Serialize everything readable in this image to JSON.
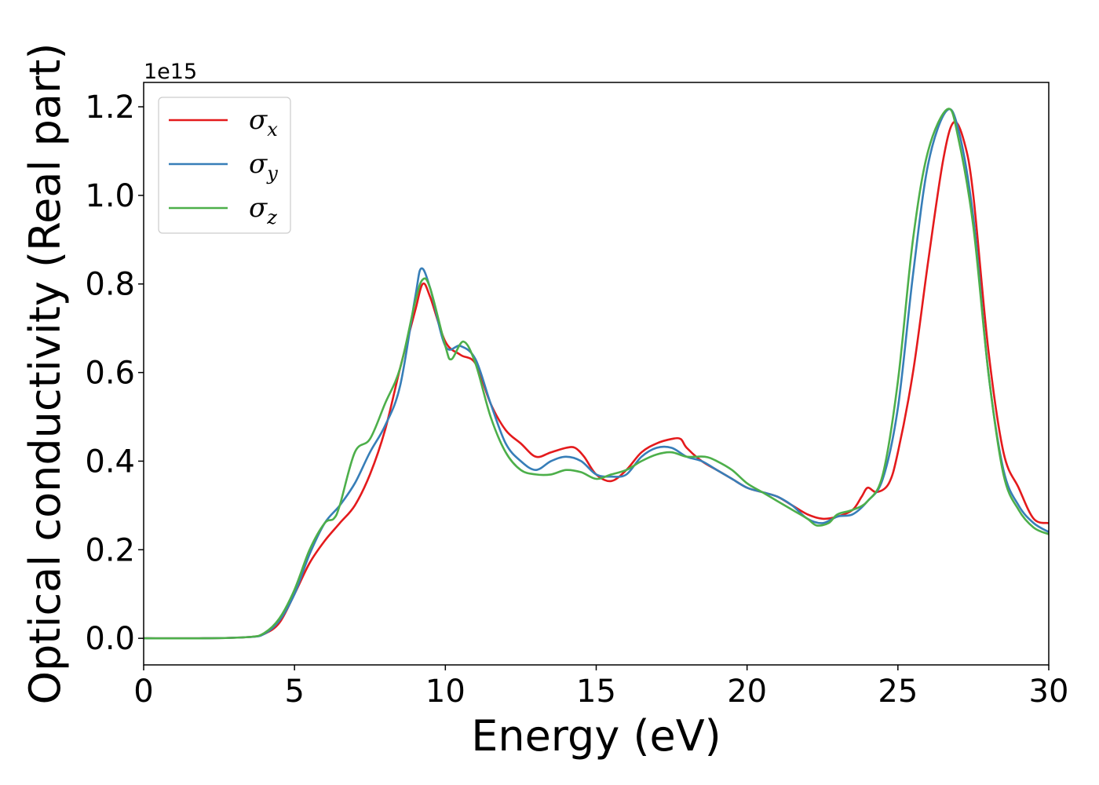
{
  "chart_data": {
    "type": "line",
    "title": "",
    "xlabel": "Energy (eV)",
    "ylabel": "Optical conductivity (Real part)",
    "y_offset_label": "1e15",
    "xlim": [
      0,
      30
    ],
    "ylim": [
      -0.06,
      1.255
    ],
    "x_ticks": [
      0,
      5,
      10,
      15,
      20,
      25,
      30
    ],
    "x_tick_labels": [
      "0",
      "5",
      "10",
      "15",
      "20",
      "25",
      "30"
    ],
    "y_ticks": [
      0.0,
      0.2,
      0.4,
      0.6,
      0.8,
      1.0,
      1.2
    ],
    "y_tick_labels": [
      "0.0",
      "0.2",
      "0.4",
      "0.6",
      "0.8",
      "1.0",
      "1.2"
    ],
    "grid": false,
    "legend_position": "top-left",
    "series": [
      {
        "name": "σx",
        "legend_symbol": "σ",
        "legend_subscript": "x",
        "color": "#e41a1c",
        "x": [
          0,
          2,
          3.5,
          4.0,
          4.5,
          5.0,
          5.5,
          6.0,
          6.5,
          7.0,
          7.5,
          8.0,
          8.5,
          9.0,
          9.25,
          9.5,
          10.0,
          10.5,
          11.0,
          11.5,
          12.0,
          12.5,
          13.0,
          13.5,
          14.0,
          14.3,
          14.6,
          15.0,
          15.5,
          16.0,
          16.5,
          17.0,
          17.5,
          17.8,
          18.0,
          18.5,
          19.0,
          19.5,
          20.0,
          20.5,
          21.0,
          21.5,
          22.0,
          22.5,
          23.0,
          23.5,
          23.8,
          24.0,
          24.3,
          24.7,
          25.0,
          25.5,
          26.0,
          26.5,
          26.85,
          27.2,
          27.5,
          28.0,
          28.5,
          29.0,
          29.5,
          30.0
        ],
        "y": [
          0.0,
          0.0,
          0.003,
          0.01,
          0.035,
          0.1,
          0.17,
          0.22,
          0.26,
          0.3,
          0.37,
          0.47,
          0.61,
          0.74,
          0.8,
          0.77,
          0.67,
          0.64,
          0.62,
          0.53,
          0.47,
          0.44,
          0.41,
          0.42,
          0.43,
          0.43,
          0.41,
          0.37,
          0.355,
          0.38,
          0.42,
          0.44,
          0.45,
          0.45,
          0.43,
          0.4,
          0.38,
          0.36,
          0.34,
          0.33,
          0.32,
          0.3,
          0.28,
          0.27,
          0.275,
          0.29,
          0.32,
          0.34,
          0.33,
          0.35,
          0.42,
          0.6,
          0.85,
          1.08,
          1.165,
          1.12,
          1.0,
          0.65,
          0.42,
          0.34,
          0.27,
          0.26
        ]
      },
      {
        "name": "σy",
        "legend_symbol": "σ",
        "legend_subscript": "y",
        "color": "#377eb8",
        "x": [
          0,
          2,
          3.5,
          4.0,
          4.5,
          5.0,
          5.5,
          6.0,
          6.5,
          7.0,
          7.5,
          8.0,
          8.5,
          9.0,
          9.2,
          9.5,
          10.0,
          10.5,
          11.0,
          11.5,
          12.0,
          12.5,
          13.0,
          13.5,
          14.0,
          14.5,
          15.0,
          15.5,
          16.0,
          16.5,
          17.0,
          17.5,
          18.0,
          18.5,
          19.0,
          19.5,
          20.0,
          20.5,
          21.0,
          21.5,
          22.0,
          22.5,
          23.0,
          23.5,
          24.0,
          24.5,
          25.0,
          25.5,
          26.0,
          26.6,
          27.0,
          27.5,
          28.0,
          28.5,
          29.0,
          29.5,
          30.0
        ],
        "y": [
          0.0,
          0.0,
          0.003,
          0.01,
          0.04,
          0.1,
          0.19,
          0.26,
          0.3,
          0.35,
          0.42,
          0.48,
          0.57,
          0.77,
          0.835,
          0.79,
          0.66,
          0.66,
          0.63,
          0.53,
          0.44,
          0.4,
          0.38,
          0.4,
          0.41,
          0.4,
          0.37,
          0.365,
          0.37,
          0.41,
          0.43,
          0.43,
          0.41,
          0.4,
          0.38,
          0.36,
          0.34,
          0.33,
          0.32,
          0.3,
          0.27,
          0.26,
          0.275,
          0.28,
          0.31,
          0.36,
          0.52,
          0.82,
          1.07,
          1.19,
          1.15,
          0.95,
          0.6,
          0.38,
          0.3,
          0.26,
          0.24
        ]
      },
      {
        "name": "σz",
        "legend_symbol": "σ",
        "legend_subscript": "z",
        "color": "#4daf4a",
        "x": [
          0,
          2,
          3.5,
          4.0,
          4.5,
          5.0,
          5.5,
          6.0,
          6.3,
          6.5,
          7.0,
          7.5,
          8.0,
          8.5,
          9.0,
          9.25,
          9.5,
          10.0,
          10.2,
          10.6,
          11.0,
          11.5,
          12.0,
          12.5,
          13.0,
          13.5,
          14.0,
          14.5,
          15.0,
          15.5,
          16.0,
          16.5,
          17.0,
          17.5,
          18.0,
          18.6,
          19.0,
          19.5,
          20.0,
          20.5,
          21.0,
          21.5,
          22.0,
          22.3,
          22.7,
          23.0,
          23.5,
          24.0,
          24.5,
          25.0,
          25.5,
          26.0,
          26.65,
          27.0,
          27.5,
          28.0,
          28.5,
          29.0,
          29.5,
          30.0
        ],
        "y": [
          0.0,
          0.0,
          0.003,
          0.012,
          0.045,
          0.11,
          0.2,
          0.26,
          0.27,
          0.3,
          0.42,
          0.45,
          0.53,
          0.61,
          0.76,
          0.81,
          0.79,
          0.66,
          0.63,
          0.67,
          0.62,
          0.5,
          0.42,
          0.38,
          0.37,
          0.37,
          0.38,
          0.375,
          0.36,
          0.37,
          0.38,
          0.4,
          0.415,
          0.42,
          0.41,
          0.41,
          0.4,
          0.38,
          0.35,
          0.33,
          0.31,
          0.29,
          0.27,
          0.255,
          0.26,
          0.28,
          0.29,
          0.31,
          0.37,
          0.58,
          0.9,
          1.1,
          1.195,
          1.13,
          0.93,
          0.6,
          0.37,
          0.29,
          0.25,
          0.235
        ]
      }
    ]
  }
}
